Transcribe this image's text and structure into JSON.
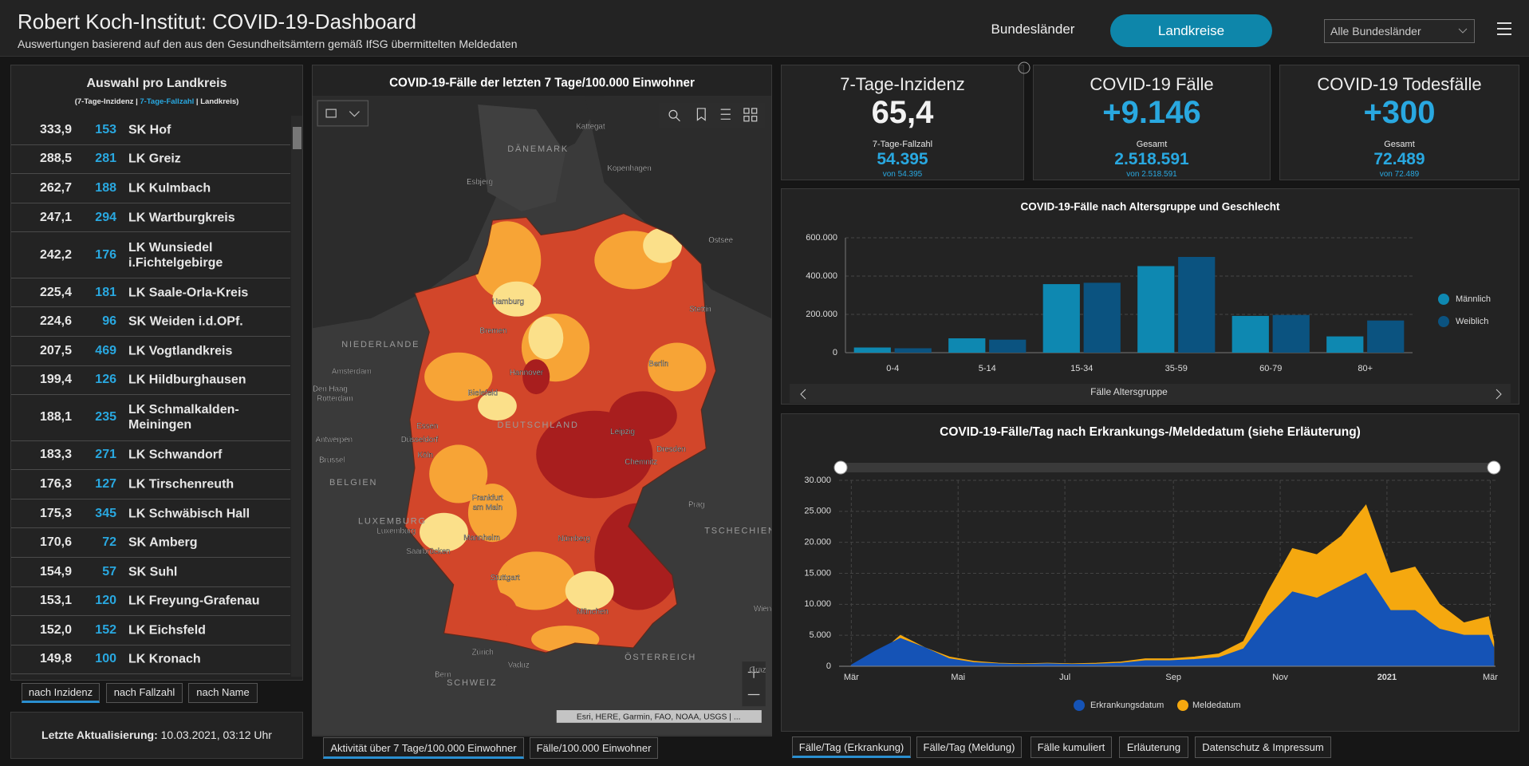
{
  "header": {
    "title": "Robert Koch-Institut: COVID-19-Dashboard",
    "subtitle": "Auswertungen basierend auf den aus den Gesundheitsämtern gemäß IfSG übermittelten Meldedaten",
    "tabs": [
      "Bundesländer",
      "Landkreise"
    ],
    "dropdown": "Alle Bundesländer"
  },
  "list": {
    "title": "Auswahl pro Landkreis",
    "legend": [
      "(7-Tage-Inzidenz",
      " | ",
      "7-Tage-Fallzahl",
      " | ",
      "Landkreis)"
    ],
    "rows": [
      [
        "333,9",
        153,
        "SK Hof"
      ],
      [
        "288,5",
        281,
        "LK Greiz"
      ],
      [
        "262,7",
        188,
        "LK Kulmbach"
      ],
      [
        "247,1",
        294,
        "LK Wartburgkreis"
      ],
      [
        "242,2",
        176,
        "LK Wunsiedel i.Fichtelgebirge"
      ],
      [
        "225,4",
        181,
        "LK Saale-Orla-Kreis"
      ],
      [
        "224,6",
        96,
        "SK Weiden i.d.OPf."
      ],
      [
        "207,5",
        469,
        "LK Vogtlandkreis"
      ],
      [
        "199,4",
        126,
        "LK Hildburghausen"
      ],
      [
        "188,1",
        235,
        "LK Schmalkalden-Meiningen"
      ],
      [
        "183,3",
        271,
        "LK Schwandorf"
      ],
      [
        "176,3",
        127,
        "LK Tirschenreuth"
      ],
      [
        "175,3",
        345,
        "LK Schwäbisch Hall"
      ],
      [
        "170,6",
        72,
        "SK Amberg"
      ],
      [
        "154,9",
        57,
        "SK Suhl"
      ],
      [
        "153,1",
        120,
        "LK Freyung-Grafenau"
      ],
      [
        "152,0",
        152,
        "LK Eichsfeld"
      ],
      [
        "149,8",
        100,
        "LK Kronach"
      ]
    ],
    "sort_buttons": [
      "nach Inzidenz",
      "nach Fallzahl",
      "nach Name"
    ],
    "last_update": {
      "label": "Letzte Aktualisierung:",
      "value": "10.03.2021, 03:12 Uhr"
    }
  },
  "map": {
    "title": "COVID-19-Fälle der letzten 7 Tage/100.000 Einwohner",
    "labels": [
      "Kattegat",
      "DÄNEMARK",
      "Kopenhagen",
      "Esbjerg",
      "Ostsee",
      "Hamburg",
      "Stettin",
      "NIEDERLANDE",
      "Bremen",
      "Amsterdam",
      "Den Haag",
      "Rotterdam",
      "Hannover",
      "Berlin",
      "Bielefeld",
      "Essen",
      "DEUTSCHLAND",
      "Düsseldorf",
      "Leipzig",
      "Antwerpen",
      "Köln",
      "Dresden",
      "Brüssel",
      "Chemnitz",
      "BELGIEN",
      "Frankfurt",
      "am Main",
      "Prag",
      "TSCHECHIEN",
      "LUXEMBURG",
      "Luxemburg",
      "Mannheim",
      "Nürnberg",
      "Saarbrücken",
      "Stuttgart",
      "München",
      "Wien",
      "Zürich",
      "Vaduz",
      "ÖSTERREICH",
      "Graz",
      "Bern",
      "SCHWEIZ"
    ],
    "attribution": "Esri, HERE, Garmin, FAO, NOAA, USGS | ...",
    "tabs": [
      "Aktivität über 7 Tage/100.000 Einwohner",
      "Fälle/100.000 Einwohner"
    ]
  },
  "kpis": [
    {
      "title": "7-Tage-Inzidenz",
      "value": "65,4",
      "sub_label": "7-Tage-Fallzahl",
      "sub_value": "54.395",
      "sub_note": "von 54.395"
    },
    {
      "title": "COVID-19 Fälle",
      "value": "+9.146",
      "sub_label": "Gesamt",
      "sub_value": "2.518.591",
      "sub_note": "von 2.518.591"
    },
    {
      "title": "COVID-19 Todesfälle",
      "value": "+300",
      "sub_label": "Gesamt",
      "sub_value": "72.489",
      "sub_note": "von 72.489"
    }
  ],
  "chart_data": [
    {
      "type": "bar",
      "title": "COVID-19-Fälle nach Altersgruppe und Geschlecht",
      "xlabel": "Fälle Altersgruppe",
      "categories": [
        "0-4",
        "5-14",
        "15-34",
        "35-59",
        "60-79",
        "80+"
      ],
      "series": [
        {
          "name": "Männlich",
          "color": "#0e88b1",
          "values": [
            27000,
            75000,
            358000,
            452000,
            192000,
            85000
          ]
        },
        {
          "name": "Weiblich",
          "color": "#0b5380",
          "values": [
            23000,
            68000,
            365000,
            500000,
            197000,
            168000
          ]
        }
      ],
      "ylim": [
        0,
        600000
      ],
      "yticks": [
        0,
        {
          "value": 200000,
          "label": "200.000"
        },
        {
          "value": 400000,
          "label": "400.000"
        },
        {
          "value": 600000,
          "label": "600.000"
        }
      ],
      "grid": true,
      "legend": "right"
    },
    {
      "type": "area",
      "title": "COVID-19-Fälle/Tag nach Erkrankungs-/Meldedatum (siehe Erläuterung)",
      "x": [
        0,
        14,
        28,
        42,
        56,
        70,
        84,
        98,
        112,
        126,
        140,
        154,
        168,
        182,
        196,
        210,
        224,
        238,
        252,
        266,
        280,
        294,
        308,
        322,
        336,
        350,
        364,
        367
      ],
      "xlim": [
        -7,
        368
      ],
      "xticks": [
        {
          "value": 0,
          "label": "Mär"
        },
        {
          "value": 61,
          "label": "Mai"
        },
        {
          "value": 122,
          "label": "Jul"
        },
        {
          "value": 184,
          "label": "Sep"
        },
        {
          "value": 245,
          "label": "Nov"
        },
        {
          "value": 306,
          "label": "2021"
        },
        {
          "value": 365,
          "label": "Mär"
        }
      ],
      "series": [
        {
          "name": "Erkrankungsdatum",
          "color": "#1553b6",
          "values": [
            200,
            2500,
            4500,
            3000,
            1200,
            600,
            400,
            300,
            400,
            300,
            350,
            500,
            900,
            900,
            1100,
            1400,
            2800,
            8000,
            12000,
            11000,
            13000,
            15000,
            9000,
            9000,
            6000,
            5000,
            5000,
            3000
          ]
        },
        {
          "name": "Meldedatum",
          "color": "#f5a80f",
          "values": [
            100,
            1500,
            5000,
            3000,
            1500,
            800,
            500,
            400,
            500,
            400,
            500,
            700,
            1200,
            1200,
            1500,
            2000,
            4000,
            12000,
            19000,
            18000,
            21000,
            26000,
            15000,
            16000,
            10000,
            7000,
            8000,
            4000
          ]
        }
      ],
      "ylim": [
        0,
        30000
      ],
      "yticks": [
        0,
        {
          "value": 5000,
          "label": "5.000"
        },
        {
          "value": 10000,
          "label": "10.000"
        },
        {
          "value": 15000,
          "label": "15.000"
        },
        {
          "value": 20000,
          "label": "20.000"
        },
        {
          "value": 25000,
          "label": "25.000"
        },
        {
          "value": 30000,
          "label": "30.000"
        }
      ],
      "grid": true,
      "legend": "bottom"
    }
  ],
  "bottom_tabs": [
    "Fälle/Tag (Erkrankung)",
    "Fälle/Tag (Meldung)",
    "Fälle kumuliert",
    "Erläuterung",
    "Datenschutz & Impressum"
  ]
}
